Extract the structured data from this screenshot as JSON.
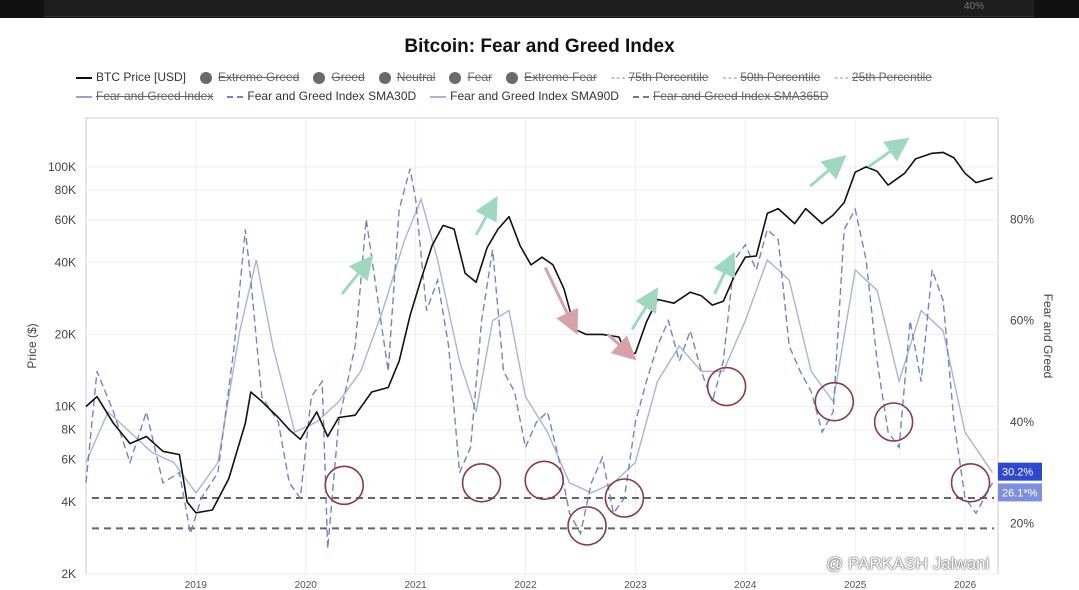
{
  "watermark": "@ PARKASH Jalwani",
  "header_strip_text": "40%",
  "chart_data": {
    "type": "line",
    "title": "Bitcoin: Fear and Greed Index",
    "legend_placement": "top",
    "ylabel_left": "Price ($)",
    "ylabel_right": "Fear and Greed",
    "left_axis_scale": "log",
    "left_ticks": [
      "2K",
      "4K",
      "6K",
      "8K",
      "10K",
      "20K",
      "40K",
      "60K",
      "80K",
      "100K"
    ],
    "left_tick_values": [
      2000,
      4000,
      6000,
      8000,
      10000,
      20000,
      40000,
      60000,
      80000,
      100000
    ],
    "right_ticks": [
      "20%",
      "40%",
      "60%",
      "80%"
    ],
    "right_tick_values": [
      20,
      40,
      60,
      80
    ],
    "x_ticks": [
      "2019",
      "2020",
      "2021",
      "2022",
      "2023",
      "2024",
      "2025",
      "2026"
    ],
    "x_tick_values": [
      2019,
      2020,
      2021,
      2022,
      2023,
      2024,
      2025,
      2026
    ],
    "xlim": [
      2018.0,
      2026.3
    ],
    "ylim_left": [
      2000,
      160000
    ],
    "ylim_right": [
      10,
      100
    ],
    "legend": [
      {
        "label": "BTC Price [USD]",
        "style": "line",
        "color": "#111111",
        "struck": false
      },
      {
        "label": "Extreme Greed",
        "style": "dot",
        "struck": true
      },
      {
        "label": "Greed",
        "style": "dot",
        "struck": true
      },
      {
        "label": "Neutral",
        "style": "dot",
        "struck": true
      },
      {
        "label": "Fear",
        "style": "dot",
        "struck": true
      },
      {
        "label": "Extreme Fear",
        "style": "dot",
        "struck": true
      },
      {
        "label": "75th Percentile",
        "style": "dash",
        "struck": true
      },
      {
        "label": "50th Percentile",
        "style": "dash",
        "struck": true
      },
      {
        "label": "25th Percentile",
        "style": "dash",
        "struck": true
      },
      {
        "label": "Fear and Greed Index",
        "style": "line",
        "color": "#9aa4c8",
        "struck": true
      },
      {
        "label": "Fear and Greed Index SMA30D",
        "style": "dashline",
        "color": "#6f86c4",
        "struck": false
      },
      {
        "label": "Fear and Greed Index SMA90D",
        "style": "line",
        "color": "#a9b4d8",
        "struck": false
      },
      {
        "label": "Fear and Greed Index SMA365D",
        "style": "dashline",
        "color": "#777777",
        "struck": true
      }
    ],
    "series": [
      {
        "name": "BTC Price [USD]",
        "axis": "left",
        "color": "#111111",
        "x": [
          2018.0,
          2018.1,
          2018.25,
          2018.4,
          2018.55,
          2018.7,
          2018.85,
          2018.92,
          2019.0,
          2019.15,
          2019.3,
          2019.45,
          2019.5,
          2019.6,
          2019.75,
          2019.85,
          2019.95,
          2020.1,
          2020.2,
          2020.3,
          2020.45,
          2020.6,
          2020.75,
          2020.85,
          2020.95,
          2021.05,
          2021.15,
          2021.25,
          2021.35,
          2021.45,
          2021.55,
          2021.65,
          2021.75,
          2021.85,
          2021.95,
          2022.05,
          2022.15,
          2022.25,
          2022.35,
          2022.45,
          2022.55,
          2022.7,
          2022.85,
          2022.92,
          2023.0,
          2023.1,
          2023.2,
          2023.35,
          2023.5,
          2023.6,
          2023.7,
          2023.8,
          2023.9,
          2024.0,
          2024.1,
          2024.2,
          2024.3,
          2024.45,
          2024.55,
          2024.7,
          2024.8,
          2024.9,
          2025.0,
          2025.1,
          2025.2,
          2025.3,
          2025.45,
          2025.55,
          2025.7,
          2025.8,
          2025.9,
          2026.0,
          2026.1,
          2026.25
        ],
        "values": [
          10000,
          11000,
          8500,
          7000,
          7500,
          6500,
          6300,
          4000,
          3600,
          3700,
          5000,
          8500,
          11500,
          10500,
          9000,
          8000,
          7300,
          9500,
          7500,
          9000,
          9200,
          11500,
          12000,
          15500,
          24000,
          34000,
          47000,
          57000,
          55000,
          36000,
          33000,
          46000,
          55000,
          62000,
          47000,
          39000,
          42000,
          39000,
          31000,
          21000,
          20000,
          20000,
          19500,
          16500,
          16700,
          22500,
          28000,
          27000,
          30000,
          29000,
          26500,
          27500,
          35000,
          42000,
          42500,
          64000,
          67000,
          58000,
          67000,
          58000,
          63000,
          71000,
          95000,
          100000,
          96000,
          84000,
          94000,
          108000,
          114000,
          115000,
          109000,
          94000,
          86000,
          90000
        ]
      },
      {
        "name": "Fear and Greed Index SMA30D",
        "axis": "right",
        "color": "#6f86c4",
        "x": [
          2018.0,
          2018.1,
          2018.25,
          2018.4,
          2018.55,
          2018.7,
          2018.85,
          2018.95,
          2019.05,
          2019.2,
          2019.35,
          2019.45,
          2019.5,
          2019.6,
          2019.75,
          2019.85,
          2019.95,
          2020.05,
          2020.15,
          2020.2,
          2020.3,
          2020.45,
          2020.55,
          2020.65,
          2020.75,
          2020.85,
          2020.95,
          2021.0,
          2021.1,
          2021.2,
          2021.3,
          2021.4,
          2021.5,
          2021.6,
          2021.7,
          2021.8,
          2021.9,
          2022.0,
          2022.1,
          2022.2,
          2022.3,
          2022.4,
          2022.5,
          2022.6,
          2022.7,
          2022.8,
          2022.9,
          2023.0,
          2023.1,
          2023.2,
          2023.3,
          2023.4,
          2023.5,
          2023.6,
          2023.7,
          2023.8,
          2023.9,
          2024.0,
          2024.1,
          2024.2,
          2024.3,
          2024.4,
          2024.5,
          2024.6,
          2024.7,
          2024.8,
          2024.9,
          2025.0,
          2025.1,
          2025.2,
          2025.3,
          2025.4,
          2025.5,
          2025.6,
          2025.7,
          2025.8,
          2025.9,
          2026.0,
          2026.1,
          2026.25
        ],
        "values": [
          28,
          50,
          42,
          32,
          42,
          28,
          30,
          18,
          25,
          30,
          55,
          78,
          68,
          45,
          40,
          28,
          25,
          45,
          48,
          15,
          40,
          55,
          80,
          65,
          50,
          82,
          90,
          84,
          62,
          68,
          55,
          30,
          35,
          60,
          74,
          50,
          46,
          35,
          40,
          42,
          33,
          22,
          18,
          28,
          33,
          22,
          25,
          40,
          48,
          55,
          60,
          52,
          58,
          50,
          44,
          52,
          72,
          75,
          70,
          78,
          76,
          55,
          50,
          46,
          38,
          42,
          78,
          82,
          72,
          52,
          38,
          35,
          60,
          48,
          70,
          64,
          40,
          25,
          22,
          28
        ]
      },
      {
        "name": "Fear and Greed Index SMA90D",
        "axis": "right",
        "color": "#a9b4d8",
        "x": [
          2018.0,
          2018.2,
          2018.4,
          2018.6,
          2018.8,
          2019.0,
          2019.2,
          2019.4,
          2019.55,
          2019.7,
          2019.9,
          2020.1,
          2020.3,
          2020.5,
          2020.7,
          2020.9,
          2021.05,
          2021.2,
          2021.4,
          2021.55,
          2021.7,
          2021.85,
          2022.0,
          2022.2,
          2022.4,
          2022.6,
          2022.8,
          2023.0,
          2023.2,
          2023.4,
          2023.6,
          2023.8,
          2024.0,
          2024.2,
          2024.4,
          2024.6,
          2024.8,
          2025.0,
          2025.2,
          2025.4,
          2025.6,
          2025.8,
          2026.0,
          2026.25
        ],
        "values": [
          32,
          42,
          38,
          34,
          32,
          26,
          32,
          58,
          72,
          55,
          38,
          40,
          44,
          50,
          62,
          76,
          84,
          72,
          52,
          42,
          60,
          62,
          45,
          38,
          28,
          26,
          28,
          32,
          48,
          55,
          50,
          50,
          60,
          72,
          68,
          50,
          44,
          70,
          66,
          48,
          62,
          58,
          38,
          30
        ]
      }
    ],
    "percentile_lines": [
      {
        "axis": "right",
        "value": 25,
        "style": "dashed"
      },
      {
        "axis": "right",
        "value": 19,
        "style": "dashed"
      }
    ],
    "annotations": {
      "value_labels": [
        {
          "text": "30.2%",
          "axis": "right",
          "value": 30.2,
          "bg": "#2f48d0"
        },
        {
          "text": "26.1*%",
          "axis": "right",
          "value": 26.1,
          "bg": "#7f8fe0"
        }
      ],
      "circles": [
        {
          "x": 2020.35,
          "y": 27.5
        },
        {
          "x": 2021.6,
          "y": 28
        },
        {
          "x": 2022.17,
          "y": 28.5
        },
        {
          "x": 2022.56,
          "y": 19.5
        },
        {
          "x": 2022.9,
          "y": 25
        },
        {
          "x": 2023.83,
          "y": 47
        },
        {
          "x": 2024.81,
          "y": 44
        },
        {
          "x": 2025.35,
          "y": 40
        },
        {
          "x": 2026.05,
          "y": 28
        }
      ],
      "arrows": [
        {
          "x1": 2020.33,
          "y1": 29500,
          "x2": 2020.58,
          "y2": 41000,
          "color": "#9fd8c0"
        },
        {
          "x1": 2021.55,
          "y1": 52000,
          "x2": 2021.72,
          "y2": 72000,
          "color": "#9fd8c0"
        },
        {
          "x1": 2022.18,
          "y1": 38000,
          "x2": 2022.45,
          "y2": 21000,
          "color": "#d8a0aa"
        },
        {
          "x1": 2022.75,
          "y1": 20000,
          "x2": 2022.97,
          "y2": 16200,
          "color": "#d8a0aa"
        },
        {
          "x1": 2022.97,
          "y1": 21000,
          "x2": 2023.18,
          "y2": 30000,
          "color": "#9fd8c0"
        },
        {
          "x1": 2023.72,
          "y1": 29500,
          "x2": 2023.88,
          "y2": 42000,
          "color": "#9fd8c0"
        },
        {
          "x1": 2024.59,
          "y1": 83000,
          "x2": 2024.88,
          "y2": 108000,
          "color": "#9fd8c0"
        },
        {
          "x1": 2025.12,
          "y1": 100000,
          "x2": 2025.45,
          "y2": 128000,
          "color": "#9fd8c0"
        }
      ]
    }
  }
}
